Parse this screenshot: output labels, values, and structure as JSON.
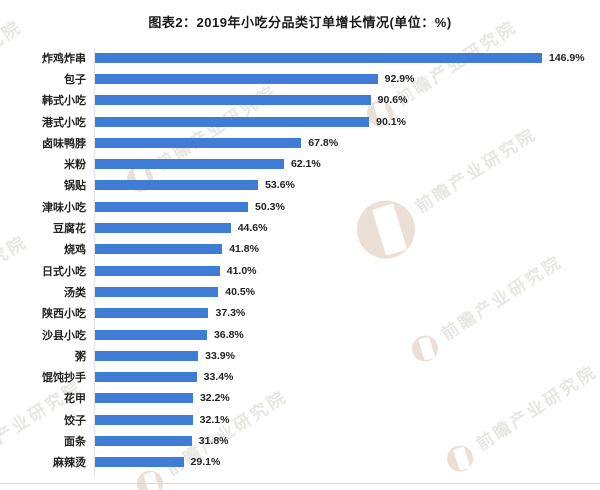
{
  "page": {
    "title": "图表2：2019年小吃分品类订单增长情况(单位：%)"
  },
  "watermark": {
    "text": "前瞻产业研究院"
  },
  "chart_data": {
    "type": "bar",
    "orientation": "horizontal",
    "title": "图表2：2019年小吃分品类订单增长情况(单位：%)",
    "unit": "%",
    "categories": [
      "炸鸡炸串",
      "包子",
      "韩式小吃",
      "港式小吃",
      "卤味鸭脖",
      "米粉",
      "锅贴",
      "津味小吃",
      "豆腐花",
      "烧鸡",
      "日式小吃",
      "汤类",
      "陕西小吃",
      "沙县小吃",
      "粥",
      "馄饨抄手",
      "花甲",
      "饺子",
      "面条",
      "麻辣烫"
    ],
    "values": [
      146.9,
      92.9,
      90.6,
      90.1,
      67.8,
      62.1,
      53.6,
      50.3,
      44.6,
      41.8,
      41.0,
      40.5,
      37.3,
      36.8,
      33.9,
      33.4,
      32.2,
      32.1,
      31.8,
      29.1
    ],
    "value_label_format": "{value}%",
    "bar_color": "#3E7CD6",
    "xlim": [
      0,
      155
    ],
    "grid": false,
    "legend": false,
    "value_labels_shown": true
  }
}
